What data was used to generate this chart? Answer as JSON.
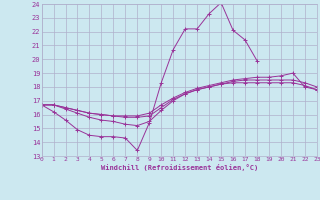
{
  "xlabel": "Windchill (Refroidissement éolien,°C)",
  "bg_color": "#cce8f0",
  "grid_color": "#b0b0cc",
  "line_color": "#993399",
  "xlim": [
    0,
    23
  ],
  "ylim": [
    13,
    24
  ],
  "xticks": [
    0,
    1,
    2,
    3,
    4,
    5,
    6,
    7,
    8,
    9,
    10,
    11,
    12,
    13,
    14,
    15,
    16,
    17,
    18,
    19,
    20,
    21,
    22,
    23
  ],
  "yticks": [
    13,
    14,
    15,
    16,
    17,
    18,
    19,
    20,
    21,
    22,
    23,
    24
  ],
  "series": [
    {
      "x": [
        0,
        1,
        2,
        3,
        4,
        5,
        6,
        7,
        8,
        9,
        10,
        11,
        12,
        13,
        14,
        15,
        16,
        17,
        18
      ],
      "y": [
        16.7,
        16.2,
        15.6,
        14.9,
        14.5,
        14.4,
        14.4,
        14.3,
        13.4,
        15.4,
        18.3,
        20.7,
        22.2,
        22.2,
        23.3,
        24.1,
        22.1,
        21.4,
        19.9
      ]
    },
    {
      "x": [
        0,
        1,
        2,
        3,
        4,
        5,
        6,
        7,
        8,
        9,
        10,
        11,
        12,
        13,
        14,
        15,
        16,
        17,
        18,
        19,
        20,
        21,
        22,
        23
      ],
      "y": [
        16.7,
        16.7,
        16.5,
        16.3,
        16.1,
        16.0,
        15.9,
        15.9,
        15.9,
        16.1,
        16.7,
        17.2,
        17.6,
        17.9,
        18.1,
        18.3,
        18.5,
        18.6,
        18.7,
        18.7,
        18.8,
        19.0,
        18.0,
        17.8
      ]
    },
    {
      "x": [
        0,
        1,
        2,
        3,
        4,
        5,
        6,
        7,
        8,
        9,
        10,
        11,
        12,
        13,
        14,
        15,
        16,
        17,
        18,
        19,
        20,
        21,
        22,
        23
      ],
      "y": [
        16.7,
        16.7,
        16.5,
        16.3,
        16.1,
        16.0,
        15.9,
        15.8,
        15.8,
        15.9,
        16.5,
        17.1,
        17.5,
        17.8,
        18.0,
        18.2,
        18.4,
        18.5,
        18.5,
        18.5,
        18.5,
        18.5,
        18.3,
        18.0
      ]
    },
    {
      "x": [
        0,
        1,
        2,
        3,
        4,
        5,
        6,
        7,
        8,
        9,
        10,
        11,
        12,
        13,
        14,
        15,
        16,
        17,
        18,
        19,
        20,
        21,
        22,
        23
      ],
      "y": [
        16.7,
        16.7,
        16.4,
        16.1,
        15.8,
        15.6,
        15.5,
        15.3,
        15.2,
        15.5,
        16.3,
        17.0,
        17.5,
        17.8,
        18.0,
        18.2,
        18.3,
        18.3,
        18.3,
        18.3,
        18.3,
        18.3,
        18.1,
        17.8
      ]
    }
  ]
}
